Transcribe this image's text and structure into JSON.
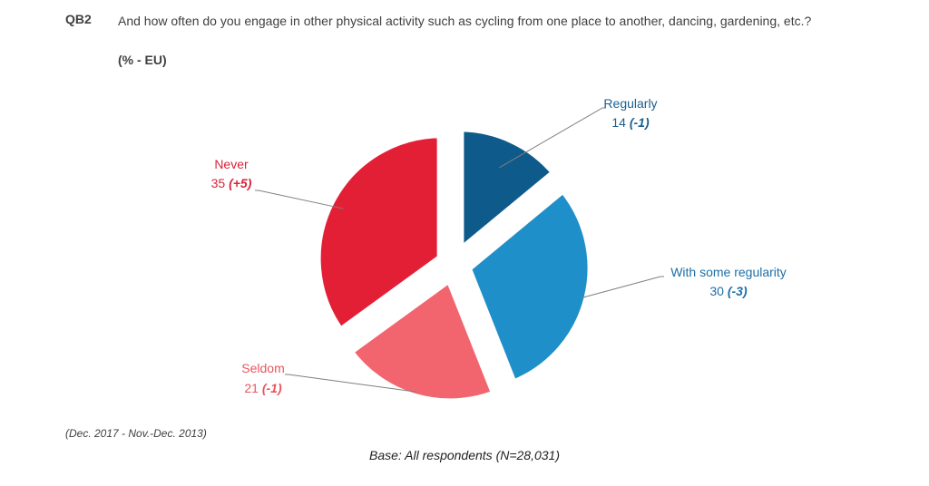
{
  "question": {
    "code": "QB2",
    "text": "And how often do you engage in other physical activity such as cycling from one place to another, dancing, gardening, etc.?",
    "unit": "(% - EU)"
  },
  "chart_data": {
    "type": "pie",
    "exploded": true,
    "slices": [
      {
        "label": "Regularly",
        "value": 14,
        "change": "(-1)",
        "color": "#0e5a8a"
      },
      {
        "label": "With some regularity",
        "value": 30,
        "change": "(-3)",
        "color": "#1f8fc9"
      },
      {
        "label": "Seldom",
        "value": 21,
        "change": "(-1)",
        "color": "#f2656e"
      },
      {
        "label": "Never",
        "value": 35,
        "change": "(+5)",
        "color": "#e31f36"
      }
    ]
  },
  "footer": {
    "period": "(Dec. 2017 - Nov.-Dec. 2013)",
    "base": "Base: All respondents (N=28,031)"
  }
}
